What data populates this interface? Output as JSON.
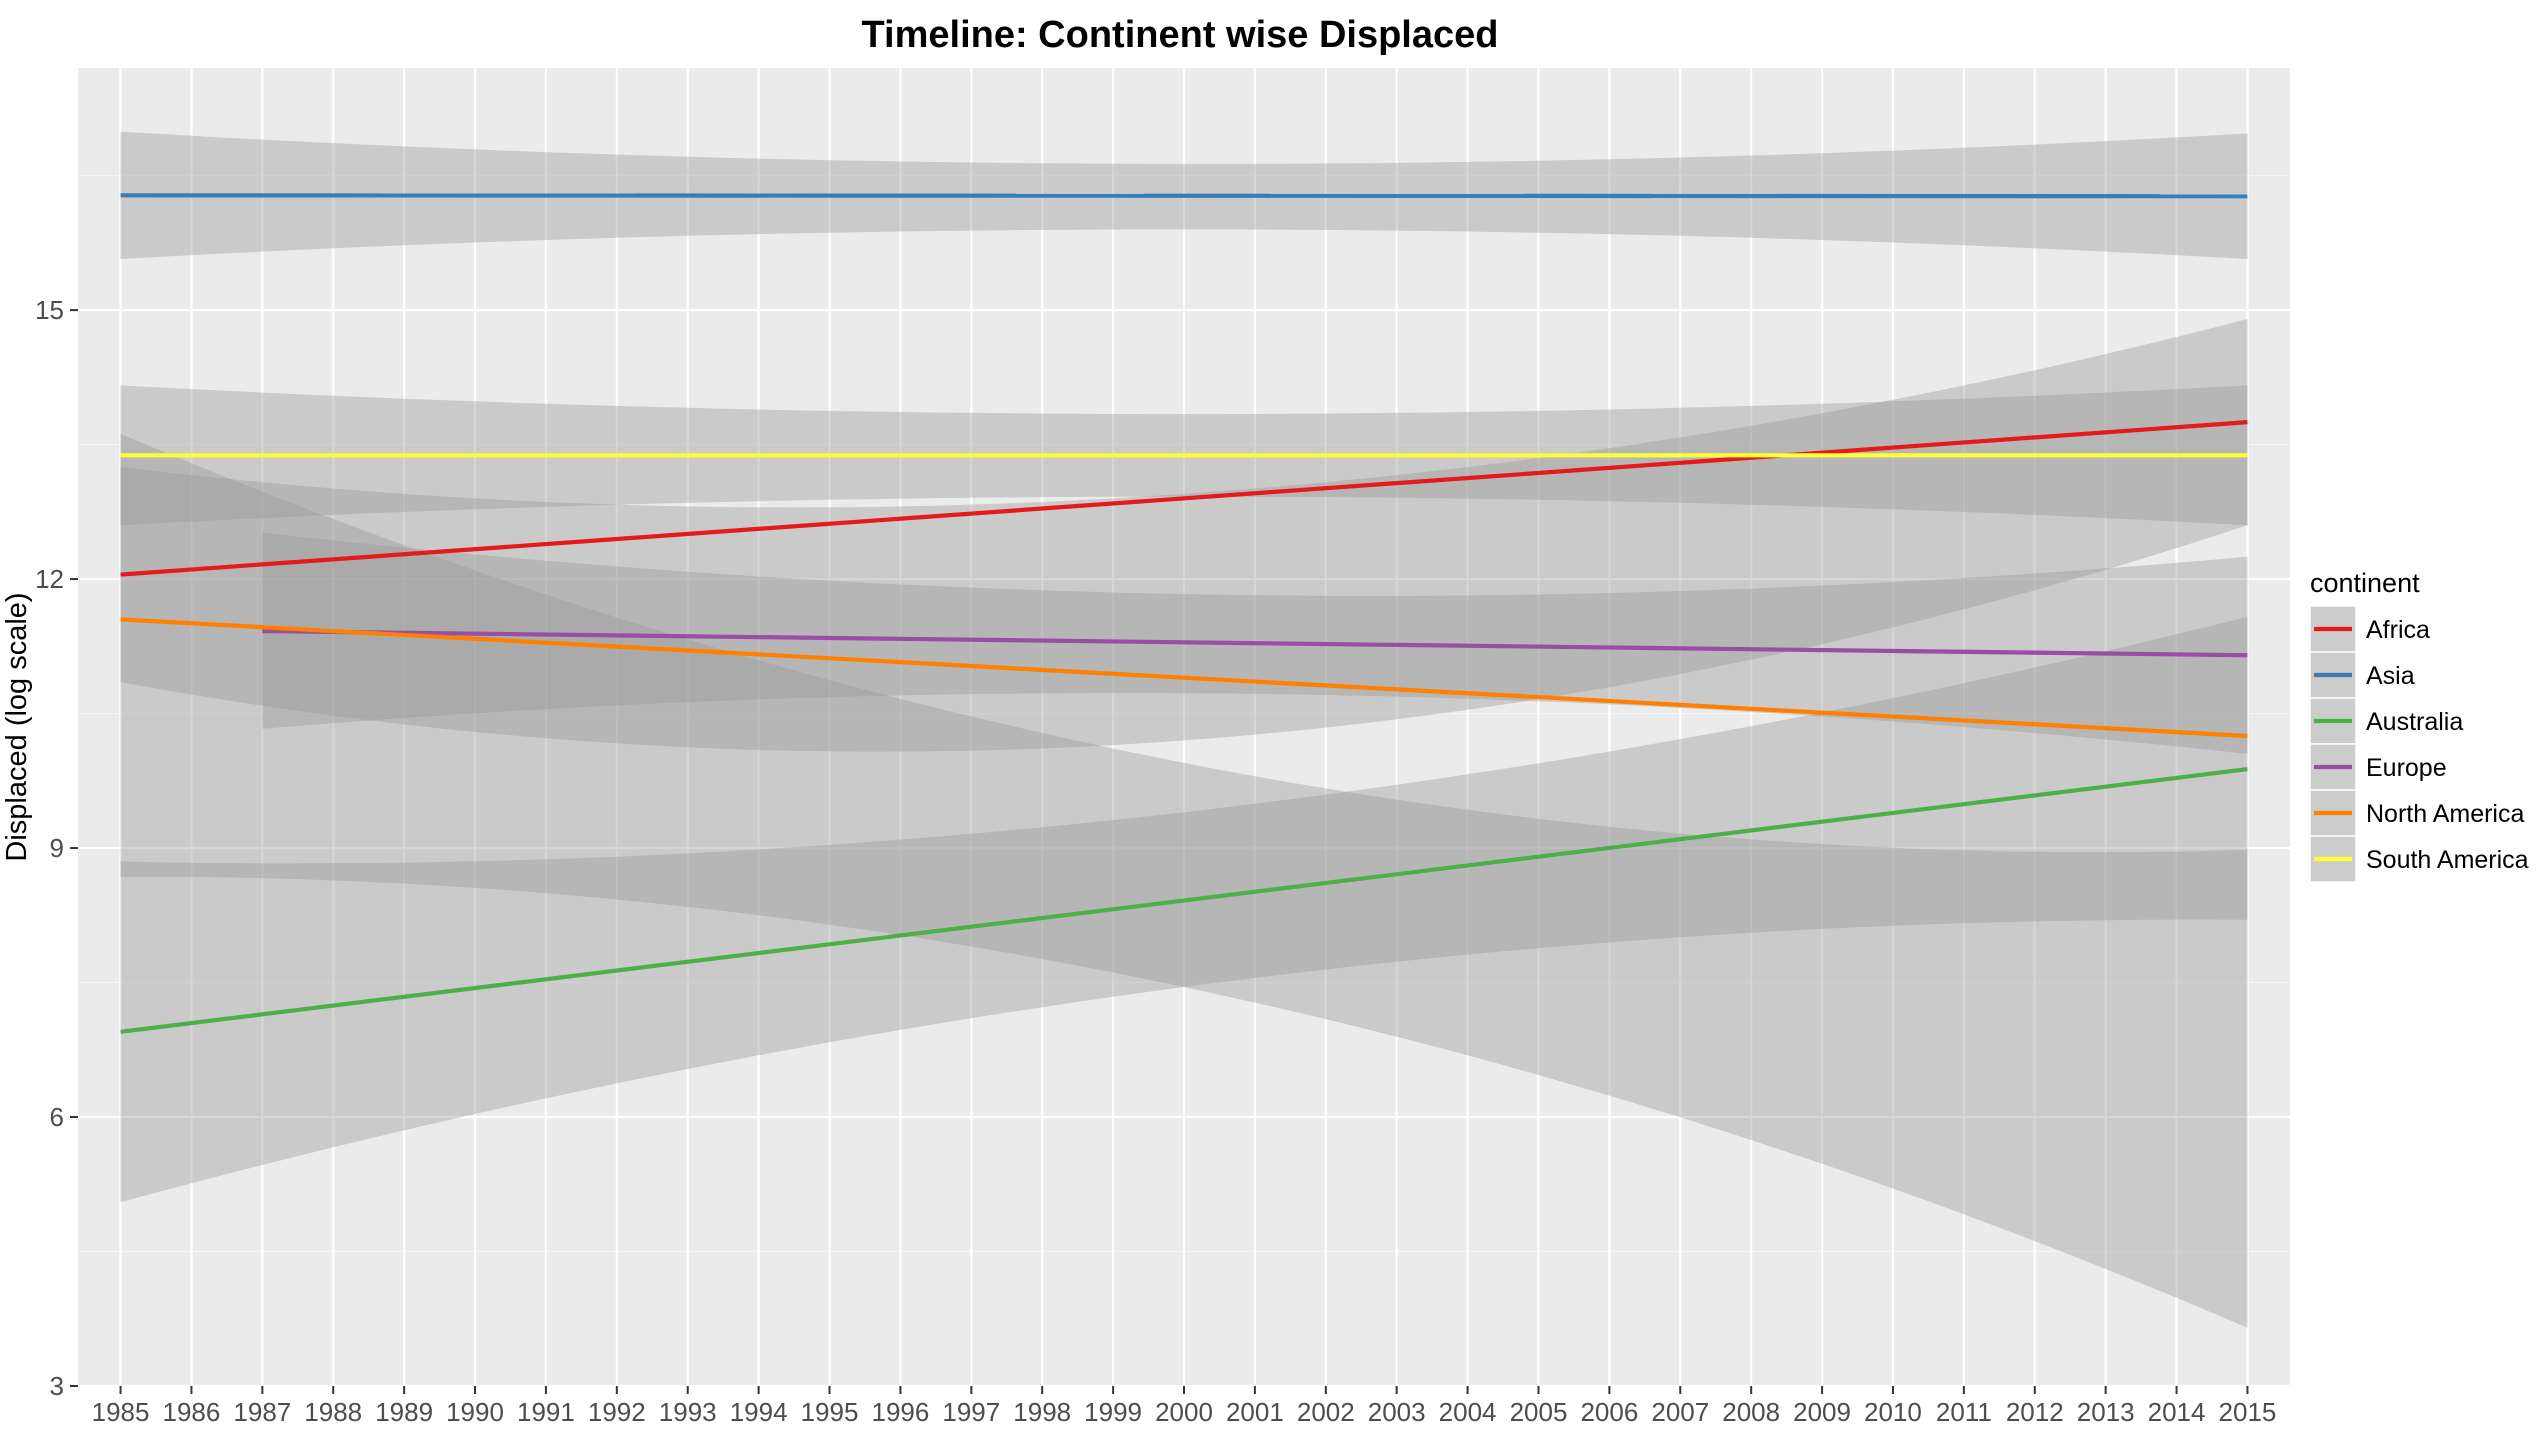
{
  "chart_data": {
    "type": "line",
    "title": "Timeline: Continent wise Displaced",
    "xlabel": "",
    "ylabel": "Displaced (log scale)",
    "x": [
      1985,
      1986,
      1987,
      1988,
      1989,
      1990,
      1991,
      1992,
      1993,
      1994,
      1995,
      1996,
      1997,
      1998,
      1999,
      2000,
      2001,
      2002,
      2003,
      2004,
      2005,
      2006,
      2007,
      2008,
      2009,
      2010,
      2011,
      2012,
      2013,
      2014,
      2015
    ],
    "x_tick_labels": [
      "1985",
      "1986",
      "1987",
      "1988",
      "1989",
      "1990",
      "1991",
      "1992",
      "1993",
      "1994",
      "1995",
      "1996",
      "1997",
      "1998",
      "1999",
      "2000",
      "2001",
      "2002",
      "2003",
      "2004",
      "2005",
      "2006",
      "2007",
      "2008",
      "2009",
      "2010",
      "2011",
      "2012",
      "2013",
      "2014",
      "2015"
    ],
    "xlim": [
      1984.4,
      2015.6
    ],
    "ylim": [
      3,
      17.7
    ],
    "y_ticks": [
      3,
      6,
      9,
      12,
      15
    ],
    "y_tick_labels": [
      "3",
      "6",
      "9",
      "12",
      "15"
    ],
    "grid": true,
    "background": "#ebebeb",
    "ribbon_color": "#999999",
    "legend": {
      "title": "continent",
      "position": "right"
    },
    "series": [
      {
        "name": "Africa",
        "color": "#e41a1c",
        "x_range": [
          1985,
          2015
        ],
        "fit": [
          12.05,
          13.75
        ],
        "lower": [
          10.85,
          10.2,
          12.6
        ],
        "upper": [
          13.25,
          12.95,
          14.9
        ]
      },
      {
        "name": "Asia",
        "color": "#377eb8",
        "x_range": [
          1985,
          2015
        ],
        "fit": [
          16.28,
          16.27
        ],
        "lower": [
          15.57,
          15.9,
          15.57
        ],
        "upper": [
          16.99,
          16.63,
          16.97
        ]
      },
      {
        "name": "Australia",
        "color": "#4daf4a",
        "x_range": [
          1985,
          2015
        ],
        "fit": [
          6.95,
          9.88
        ],
        "lower": [
          5.05,
          7.45,
          8.2
        ],
        "upper": [
          8.85,
          9.4,
          11.58
        ]
      },
      {
        "name": "Europe",
        "color": "#984ea3",
        "x_range": [
          1987,
          2015
        ],
        "fit": [
          11.42,
          11.15
        ],
        "lower": [
          10.33,
          10.72,
          10.05
        ],
        "upper": [
          12.52,
          11.82,
          12.25
        ]
      },
      {
        "name": "North America",
        "color": "#ff7f00",
        "x_range": [
          1985,
          2015
        ],
        "fit": [
          11.55,
          10.25
        ],
        "lower": [
          8.68,
          7.45,
          3.65
        ],
        "upper": [
          13.62,
          9.95,
          8.98
        ]
      },
      {
        "name": "South America",
        "color": "#ffff33",
        "x_range": [
          1985,
          2015
        ],
        "fit": [
          13.38,
          13.38
        ],
        "lower": [
          12.6,
          12.92,
          12.6
        ],
        "upper": [
          14.16,
          13.84,
          14.16
        ]
      }
    ]
  }
}
